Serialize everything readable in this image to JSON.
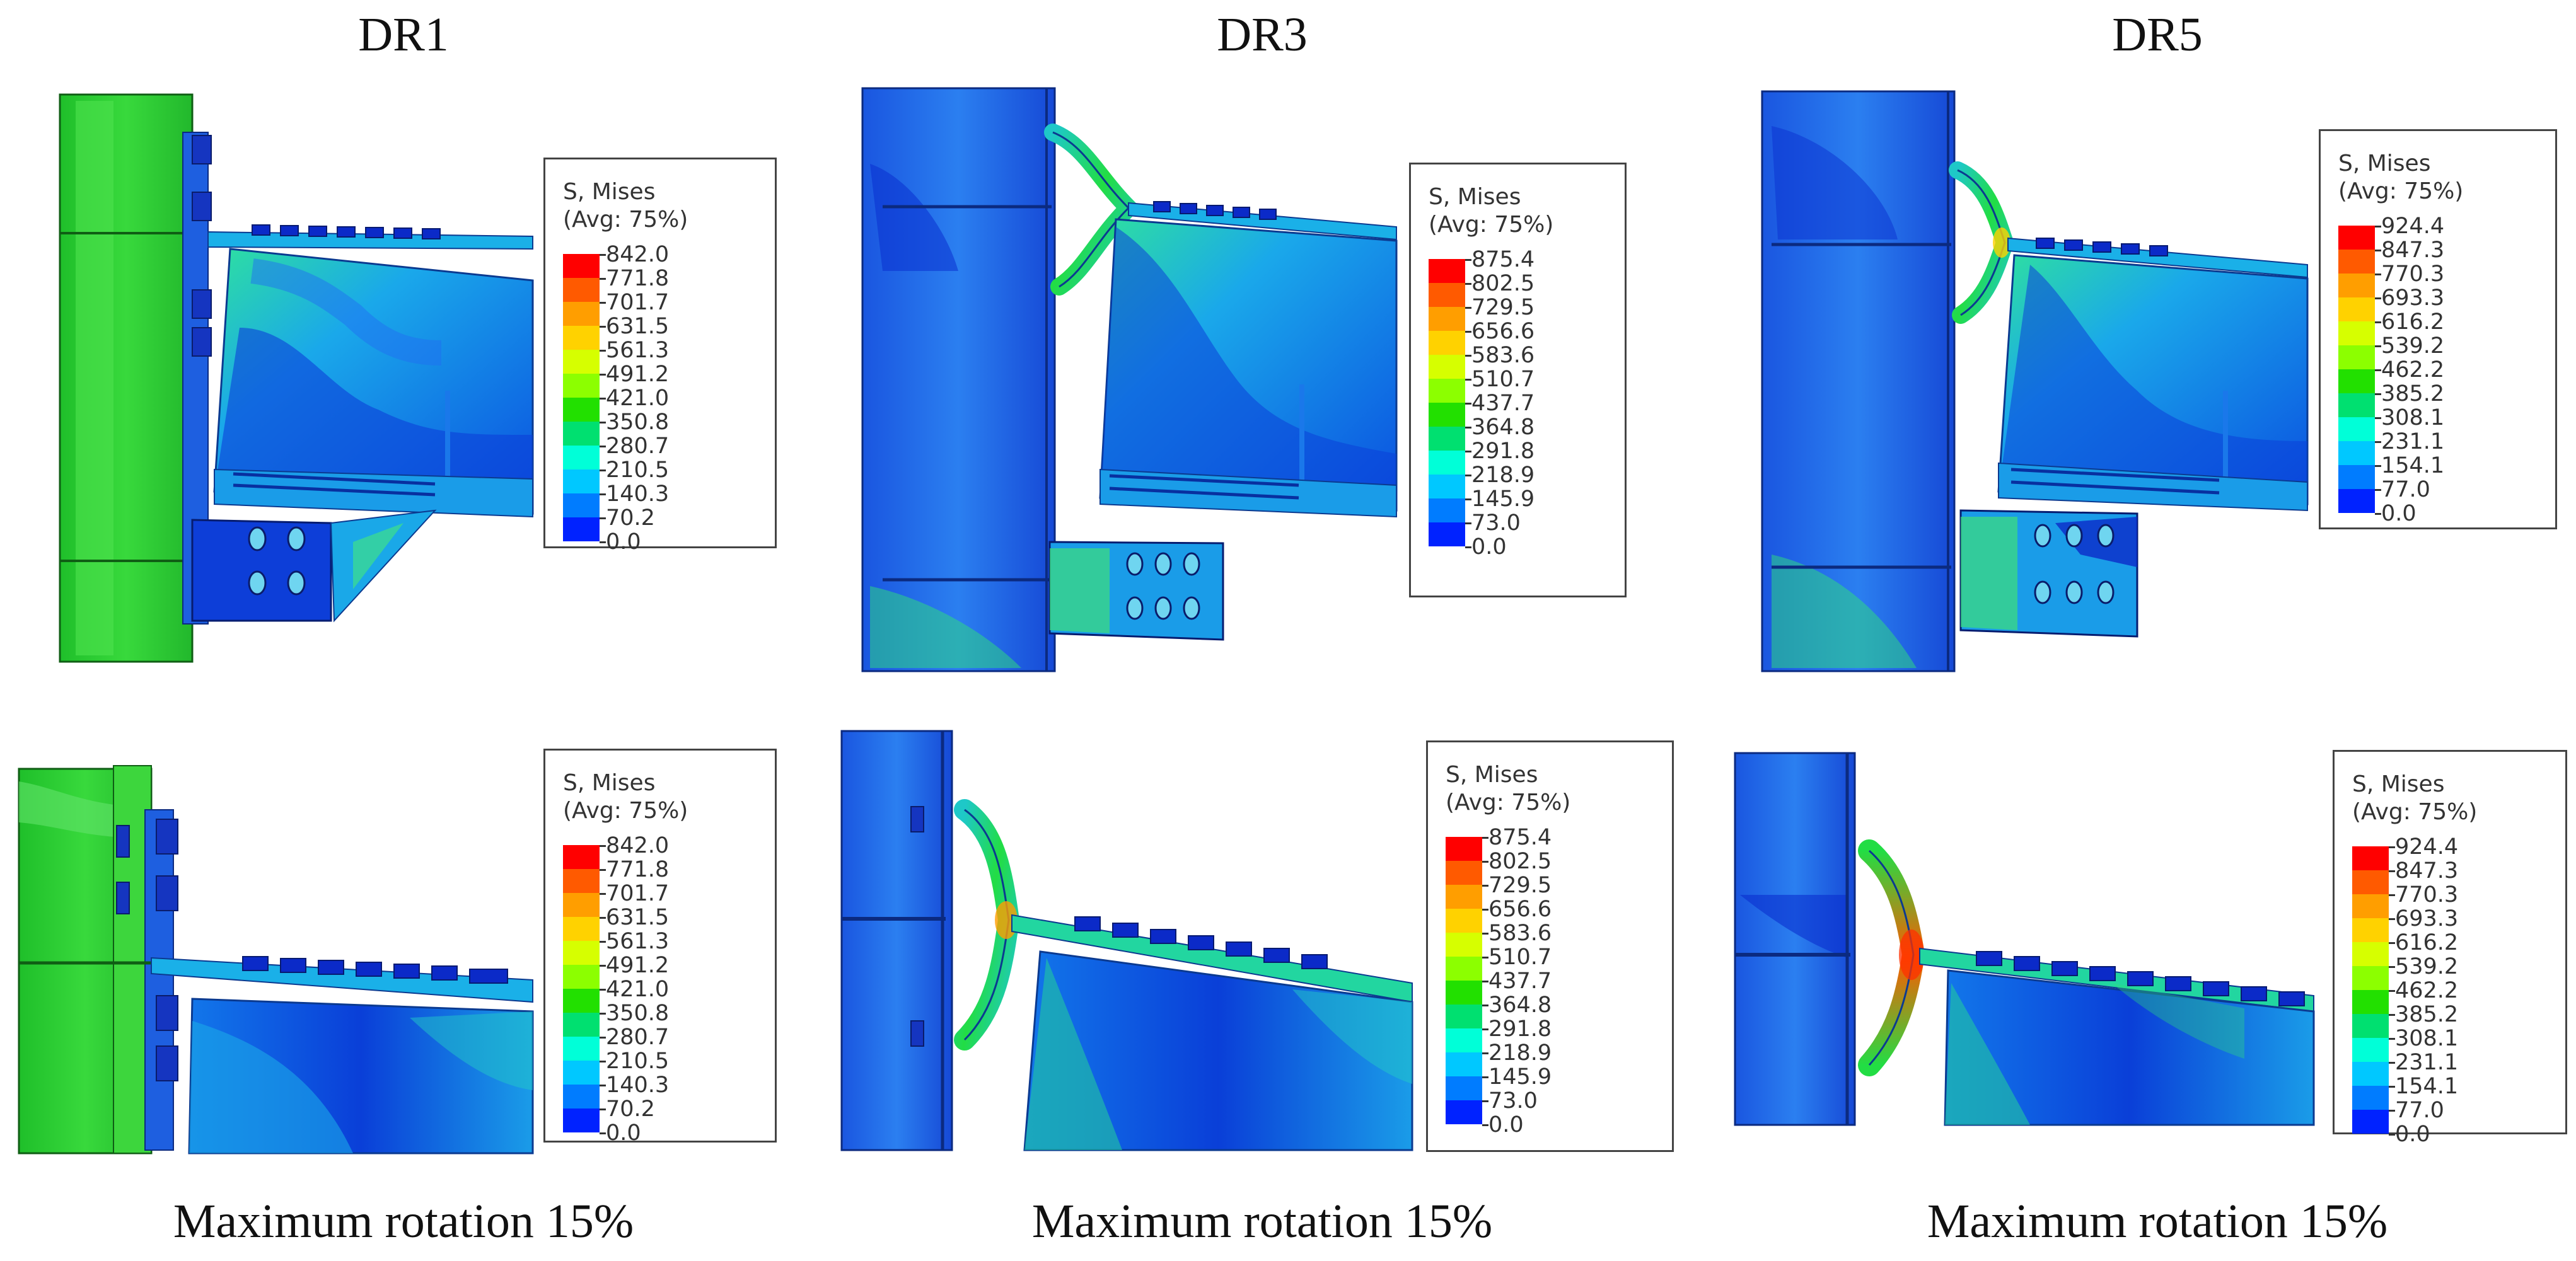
{
  "columns": [
    {
      "title": "DR1",
      "caption": "Maximum rotation 15%"
    },
    {
      "title": "DR3",
      "caption": "Maximum rotation 15%"
    },
    {
      "title": "DR5",
      "caption": "Maximum rotation 15%"
    }
  ],
  "legend_common": {
    "variable": "S, Mises",
    "averaging": "(Avg: 75%)"
  },
  "legend_values": {
    "dr1": [
      "842.0",
      "771.8",
      "701.7",
      "631.5",
      "561.3",
      "491.2",
      "421.0",
      "350.8",
      "280.7",
      "210.5",
      "140.3",
      "70.2",
      "0.0"
    ],
    "dr3": [
      "875.4",
      "802.5",
      "729.5",
      "656.6",
      "583.6",
      "510.7",
      "437.7",
      "364.8",
      "291.8",
      "218.9",
      "145.9",
      "73.0",
      "0.0"
    ],
    "dr5": [
      "924.4",
      "847.3",
      "770.3",
      "693.3",
      "616.2",
      "539.2",
      "462.2",
      "385.2",
      "308.1",
      "231.1",
      "154.1",
      "77.0",
      "0.0"
    ]
  },
  "contour_colors": [
    "#ff0000",
    "#ff5a00",
    "#ff9e00",
    "#ffd200",
    "#d6ff00",
    "#8cff00",
    "#22e000",
    "#00e070",
    "#00ffd8",
    "#00c8ff",
    "#007cff",
    "#0022ff"
  ]
}
